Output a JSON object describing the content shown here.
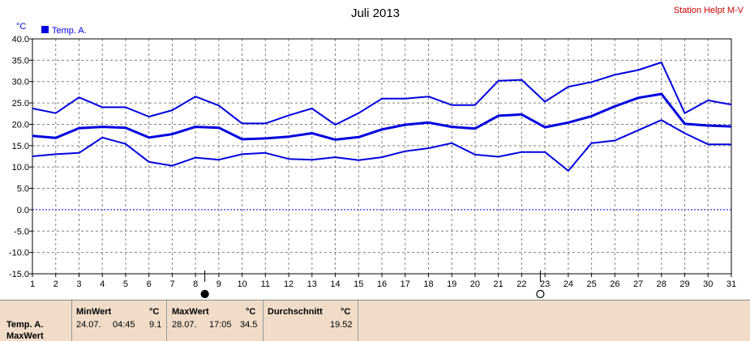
{
  "chart_data": {
    "type": "line",
    "title": "Juli 2013",
    "station": "Station Helpt M-V",
    "unit": "°C",
    "legend": "Temp. A.",
    "color": "#0000e0",
    "grid": true,
    "xlim": [
      1,
      31
    ],
    "ylim": [
      -15,
      40
    ],
    "x": [
      1,
      2,
      3,
      4,
      5,
      6,
      7,
      8,
      9,
      10,
      11,
      12,
      13,
      14,
      15,
      16,
      17,
      18,
      19,
      20,
      21,
      22,
      23,
      24,
      25,
      26,
      27,
      28,
      29,
      30,
      31
    ],
    "y_ticks": [
      "40.0",
      "35.0",
      "30.0",
      "25.0",
      "20.0",
      "15.0",
      "10.0",
      "5.0",
      "0.0",
      "-5.0",
      "-10.0",
      "-15.0"
    ],
    "series": [
      {
        "role": "max",
        "values": [
          23.7,
          22.6,
          26.3,
          24.0,
          24.0,
          21.8,
          23.3,
          26.5,
          24.4,
          20.2,
          20.2,
          22.1,
          23.7,
          19.9,
          22.6,
          26.0,
          26.0,
          26.5,
          24.5,
          24.5,
          30.2,
          30.4,
          25.3,
          28.8,
          29.9,
          31.6,
          32.7,
          34.5,
          22.6,
          25.6,
          24.6
        ]
      },
      {
        "role": "avg",
        "values": [
          17.3,
          16.8,
          19.1,
          19.4,
          19.2,
          16.9,
          17.7,
          19.4,
          19.2,
          16.5,
          16.7,
          17.1,
          17.9,
          16.4,
          17.0,
          18.8,
          19.9,
          20.4,
          19.4,
          19.0,
          22.0,
          22.3,
          19.3,
          20.4,
          21.9,
          24.2,
          26.2,
          27.1,
          20.1,
          19.7,
          19.5
        ]
      },
      {
        "role": "min",
        "values": [
          12.5,
          13.0,
          13.3,
          16.9,
          15.4,
          11.2,
          10.3,
          12.2,
          11.7,
          13.0,
          13.3,
          11.9,
          11.7,
          12.3,
          11.6,
          12.3,
          13.7,
          14.4,
          15.6,
          12.9,
          12.4,
          13.5,
          13.5,
          9.1,
          15.6,
          16.2,
          18.6,
          21.0,
          17.9,
          15.3,
          15.3
        ]
      }
    ],
    "markers": [
      {
        "day": 8.4,
        "symbol": "filled-circle"
      },
      {
        "day": 22.8,
        "symbol": "open-circle"
      }
    ]
  },
  "panel": {
    "series_label": "Temp. A.",
    "series_label2": "MaxWert",
    "min_header": "MinWert",
    "min_unit": "°C",
    "min_date": "24.07.",
    "min_time": "04:45",
    "min_value": "9.1",
    "max_header": "MaxWert",
    "max_unit": "°C",
    "max_date": "28.07.",
    "max_time": "17:05",
    "max_value": "34.5",
    "avg_header": "Durchschnitt",
    "avg_unit": "°C",
    "avg_value": "19.52"
  }
}
